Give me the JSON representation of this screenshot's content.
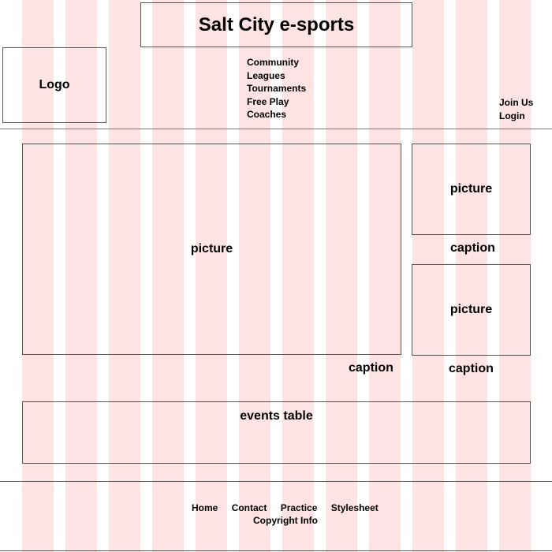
{
  "colors": {
    "grid_column": "#fde3e3",
    "border": "#555555",
    "text": "#000000"
  },
  "header": {
    "title": "Salt City e-sports",
    "logo": "Logo",
    "nav": [
      "Community",
      "Leagues",
      "Tournaments",
      "Free Play",
      "Coaches"
    ],
    "account_links": [
      "Join Us",
      "Login"
    ]
  },
  "main": {
    "hero": {
      "picture": "picture",
      "caption": "caption"
    },
    "side": [
      {
        "picture": "picture",
        "caption": "caption"
      },
      {
        "picture": "picture",
        "caption": "caption"
      }
    ],
    "events": "events table"
  },
  "footer": {
    "links": [
      "Home",
      "Contact",
      "Practice",
      "Stylesheet"
    ],
    "copyright": "Copyright Info"
  }
}
